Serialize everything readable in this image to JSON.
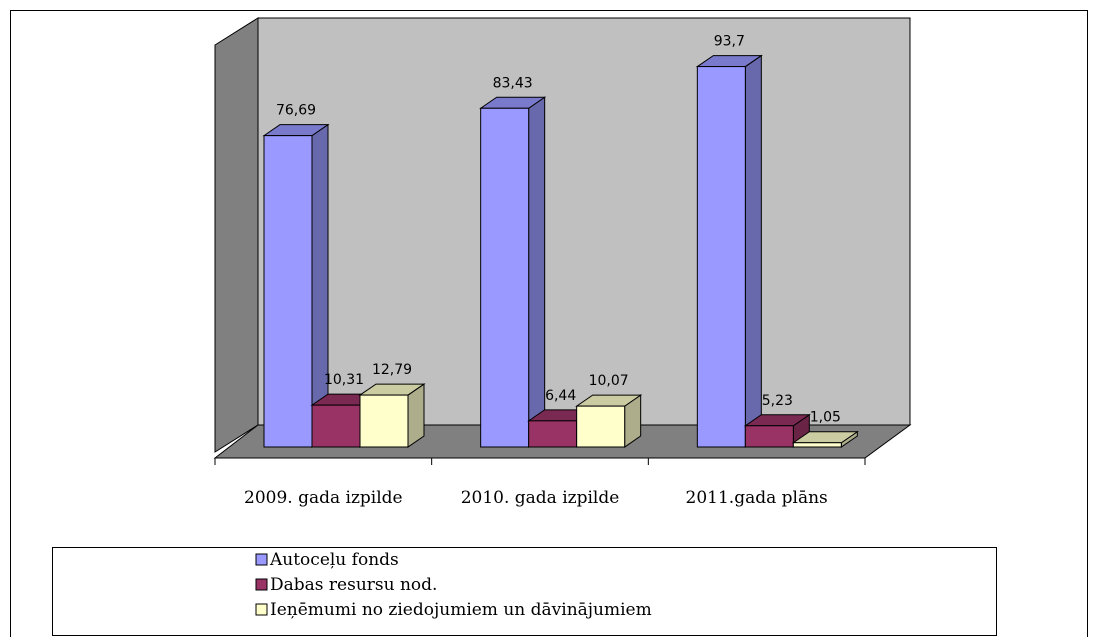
{
  "chart_data": {
    "type": "bar3d",
    "categories": [
      "2009. gada izpilde",
      "2010. gada izpilde",
      "2011.gada plāns"
    ],
    "series": [
      {
        "name": "Autoceļu fonds",
        "color": "#9999ff",
        "values": [
          76.69,
          83.43,
          93.7
        ],
        "value_labels": [
          "76,69",
          "83,43",
          "93,7"
        ]
      },
      {
        "name": "Dabas resursu nod.",
        "color": "#993366",
        "values": [
          10.31,
          6.44,
          5.23
        ],
        "value_labels": [
          "10,31",
          "6,44",
          "5,23"
        ]
      },
      {
        "name": "Ieņēmumi no ziedojumiem un dāvinājumiem",
        "color": "#ffffcc",
        "values": [
          12.79,
          10.07,
          1.05
        ],
        "value_labels": [
          "12,79",
          "10,07",
          "1,05"
        ]
      }
    ],
    "ylim": [
      0,
      100
    ],
    "legend": "bottom"
  }
}
